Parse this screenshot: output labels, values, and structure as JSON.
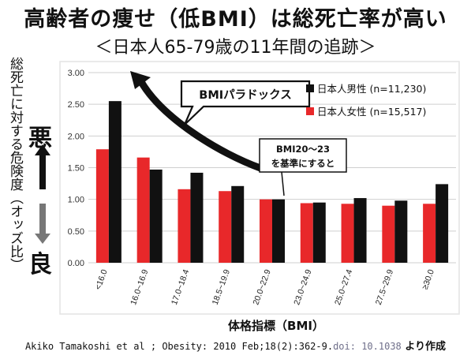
{
  "header": {
    "title": "高齢者の痩せ（低BMI）は総死亡率が高い",
    "subtitle": "＜日本人65-79歳の11年間の追跡＞"
  },
  "side_labels": {
    "ylabel": "総死亡に対する危険度（オッズ比）",
    "bad": "悪",
    "good": "良"
  },
  "annotations": {
    "paradox": "BMIパラドックス",
    "reference_line1": "BMI20～23",
    "reference_line2": "を基準にすると"
  },
  "footer": {
    "citation": "Akiko Tamakoshi et al ; Obesity: 2010 Feb;18(2):362-9.",
    "doi": "doi: 10.1038",
    "suffix": " より作成"
  },
  "colors": {
    "female": "#e8282a",
    "male": "#111111",
    "arrow": "#111111",
    "frame": "#e3e3e3"
  },
  "chart_data": {
    "type": "bar",
    "xlabel": "体格指標（BMI）",
    "ylabel": "総死亡に対する危険度（オッズ比）",
    "ylim": [
      0,
      3
    ],
    "yticks": [
      "0.00",
      "0.50",
      "1.00",
      "1.50",
      "2.00",
      "2.50",
      "3.00"
    ],
    "legend_position": "top-right",
    "categories": [
      "<16.0",
      "16.0~16.9",
      "17.0~18.4",
      "18.5~19.9",
      "20.0~22.9",
      "23.0~24.9",
      "25.0~27.4",
      "27.5~29.9",
      "≥30.0"
    ],
    "series": [
      {
        "name": "日本人女性 (n=15,517)",
        "color": "#e8282a",
        "values": [
          1.79,
          1.66,
          1.16,
          1.13,
          1.0,
          0.94,
          0.93,
          0.9,
          0.93
        ]
      },
      {
        "name": "日本人男性 (n=11,230)",
        "color": "#111111",
        "values": [
          2.55,
          1.47,
          1.42,
          1.21,
          1.0,
          0.95,
          1.02,
          0.98,
          1.24
        ]
      }
    ]
  }
}
